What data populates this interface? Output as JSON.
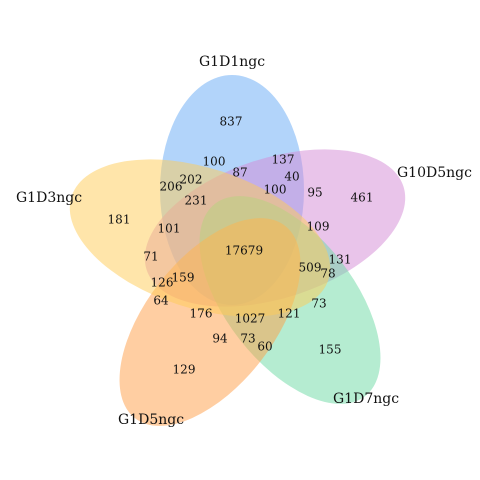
{
  "sets": [
    {
      "name": "G1D1ngc",
      "color": "#66A9F5"
    },
    {
      "name": "G10D5ngc",
      "color": "#D489D6"
    },
    {
      "name": "G1D7ngc",
      "color": "#6CD9A3"
    },
    {
      "name": "G1D5ngc",
      "color": "#FF9D45"
    },
    {
      "name": "G1D3ngc",
      "color": "#FFCB55"
    }
  ],
  "counts": [
    "837",
    "461",
    "155",
    "129",
    "181",
    "100",
    "137",
    "87",
    "40",
    "100",
    "95",
    "206",
    "202",
    "231",
    "109",
    "101",
    "17679",
    "71",
    "509",
    "78",
    "131",
    "126",
    "159",
    "64",
    "73",
    "176",
    "121",
    "1027",
    "94",
    "73",
    "60"
  ]
}
